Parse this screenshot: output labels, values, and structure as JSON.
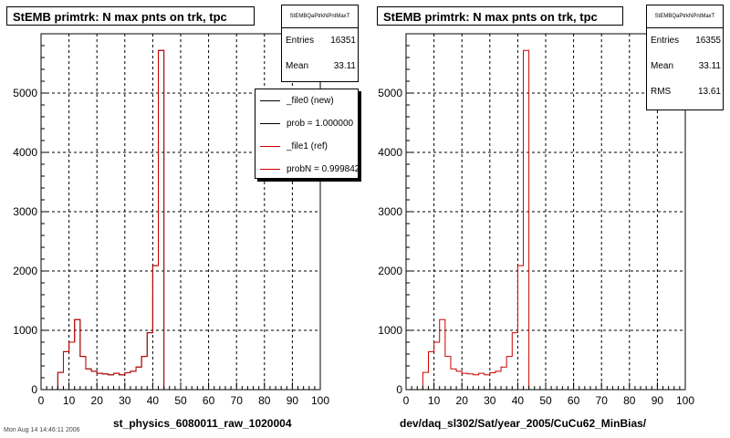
{
  "footer": {
    "text": "Mon Aug 14 14:46:11 2006"
  },
  "chart_data": [
    {
      "type": "bar",
      "title": "StEMB primtrk: N max pnts on trk, tpc",
      "xlabel": "st_physics_6080011_raw_1020004",
      "ylabel": "",
      "xlim": [
        0,
        100
      ],
      "ylim": [
        0,
        6000
      ],
      "xticks": [
        0,
        10,
        20,
        30,
        40,
        50,
        60,
        70,
        80,
        90,
        100
      ],
      "yticks": [
        0,
        1000,
        2000,
        3000,
        4000,
        5000
      ],
      "grid": true,
      "bin_edges_start": 6,
      "bin_width": 2,
      "series": [
        {
          "color": "#000000",
          "values": [
            290,
            640,
            800,
            1180,
            560,
            350,
            310,
            275,
            265,
            250,
            275,
            250,
            285,
            310,
            380,
            560,
            960,
            2090,
            5720,
            0
          ]
        },
        {
          "color": "#cc0000",
          "values": [
            290,
            640,
            800,
            1180,
            560,
            350,
            310,
            275,
            265,
            250,
            275,
            250,
            285,
            310,
            380,
            560,
            960,
            2090,
            5720,
            0
          ]
        }
      ],
      "stats": {
        "name": "StEMBQaPtrkNPntMaxT",
        "rows": [
          {
            "label": "Entries",
            "value": "16351"
          },
          {
            "label": "Mean",
            "value": "33.11"
          }
        ]
      },
      "legend": {
        "placement": "top-right",
        "entries": [
          {
            "label": "_file0 (new)",
            "color": "#000000"
          },
          {
            "label": "prob = 1.000000",
            "color": "#000000"
          },
          {
            "label": "_file1 (ref)",
            "color": "#cc0000"
          },
          {
            "label": "probN = 0.999842",
            "color": "#cc0000"
          }
        ]
      }
    },
    {
      "type": "bar",
      "title": "StEMB primtrk: N max pnts on trk, tpc",
      "xlabel": "dev/daq_sl302/Sat/year_2005/CuCu62_MinBias/",
      "ylabel": "",
      "xlim": [
        0,
        100
      ],
      "ylim": [
        0,
        6000
      ],
      "xticks": [
        0,
        10,
        20,
        30,
        40,
        50,
        60,
        70,
        80,
        90,
        100
      ],
      "yticks": [
        0,
        1000,
        2000,
        3000,
        4000,
        5000
      ],
      "grid": true,
      "bin_edges_start": 6,
      "bin_width": 2,
      "series": [
        {
          "color": "#cc0000",
          "values": [
            290,
            640,
            800,
            1180,
            560,
            350,
            310,
            275,
            265,
            250,
            275,
            250,
            285,
            310,
            380,
            560,
            960,
            2090,
            5720,
            0
          ]
        }
      ],
      "stats": {
        "name": "StEMBQaPtrkNPntMaxT",
        "rows": [
          {
            "label": "Entries",
            "value": "16355"
          },
          {
            "label": "Mean",
            "value": "33.11"
          },
          {
            "label": "RMS",
            "value": "13.61"
          }
        ]
      }
    }
  ]
}
